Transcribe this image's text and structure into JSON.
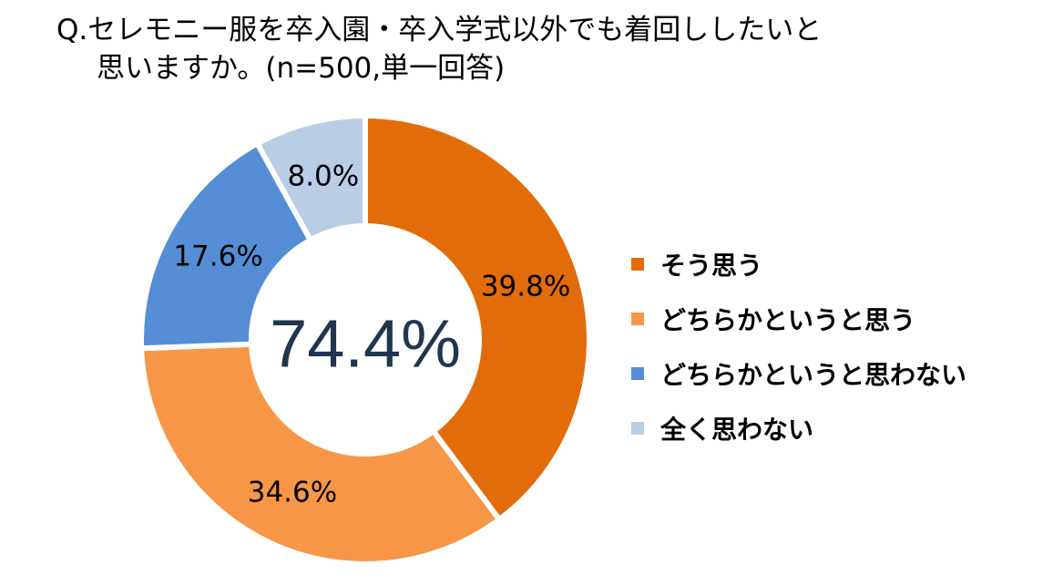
{
  "title": {
    "line1": "Q.セレモニー服を卒入園・卒入学式以外でも着回ししたいと",
    "line2": "思いますか。(n=500,単一回答)"
  },
  "center_label": "74.4%",
  "colors": {
    "そう思う": "#E36C0A",
    "どちらかというと思う": "#F79646",
    "どちらかというと思わない": "#558ED5",
    "全く思わない": "#B9CDE5",
    "center_text": "#1F3550"
  },
  "chart_data": {
    "type": "pie",
    "variant": "donut",
    "categories": [
      "そう思う",
      "どちらかというと思う",
      "どちらかというと思わない",
      "全く思わない"
    ],
    "values": [
      39.8,
      34.6,
      17.6,
      8.0
    ],
    "labels": [
      "39.8%",
      "34.6%",
      "17.6%",
      "8.0%"
    ],
    "legend_position": "right"
  }
}
